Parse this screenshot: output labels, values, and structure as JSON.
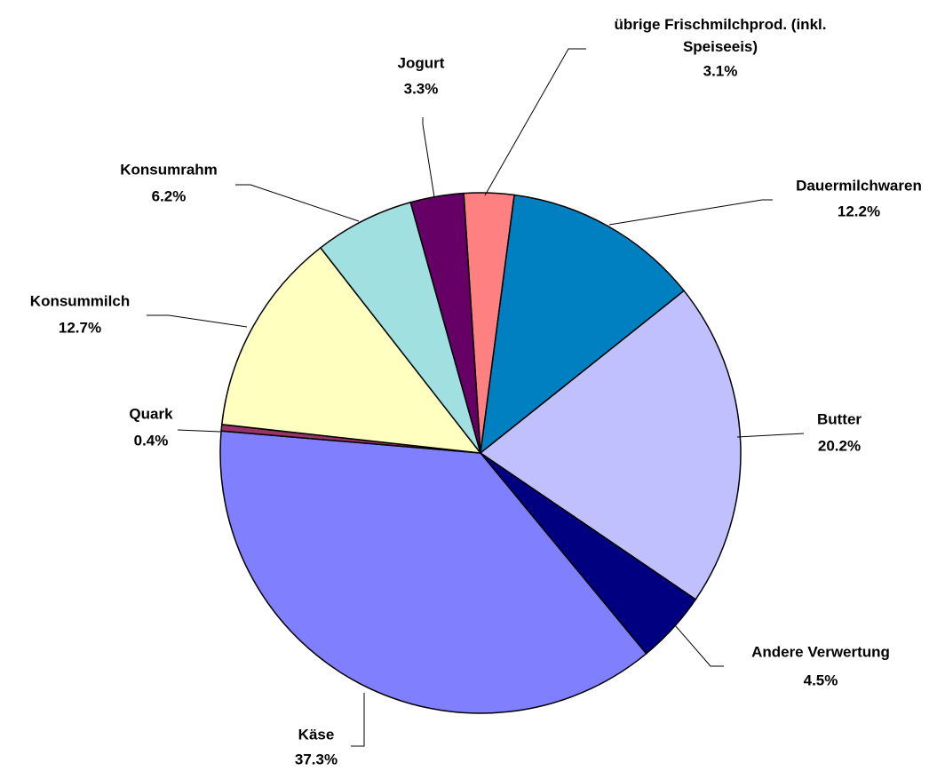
{
  "chart_data": {
    "type": "pie",
    "categories": [
      "übrige Frischmilchprod. (inkl. Speiseeis)",
      "Dauermilchwaren",
      "Butter",
      "Andere Verwertung",
      "Käse",
      "Quark",
      "Konsummilch",
      "Konsumrahm",
      "Jogurt"
    ],
    "values": [
      3.1,
      12.2,
      20.2,
      4.5,
      37.3,
      0.4,
      12.7,
      6.2,
      3.3
    ],
    "value_labels": [
      "3.1%",
      "12.2%",
      "20.2%",
      "4.5%",
      "37.3%",
      "0.4%",
      "12.7%",
      "6.2%",
      "3.3%"
    ],
    "colors": [
      "#FF8080",
      "#0080C0",
      "#C0C0FF",
      "#000080",
      "#8080FF",
      "#993366",
      "#FFFFC0",
      "#A0E0E0",
      "#660066"
    ]
  }
}
